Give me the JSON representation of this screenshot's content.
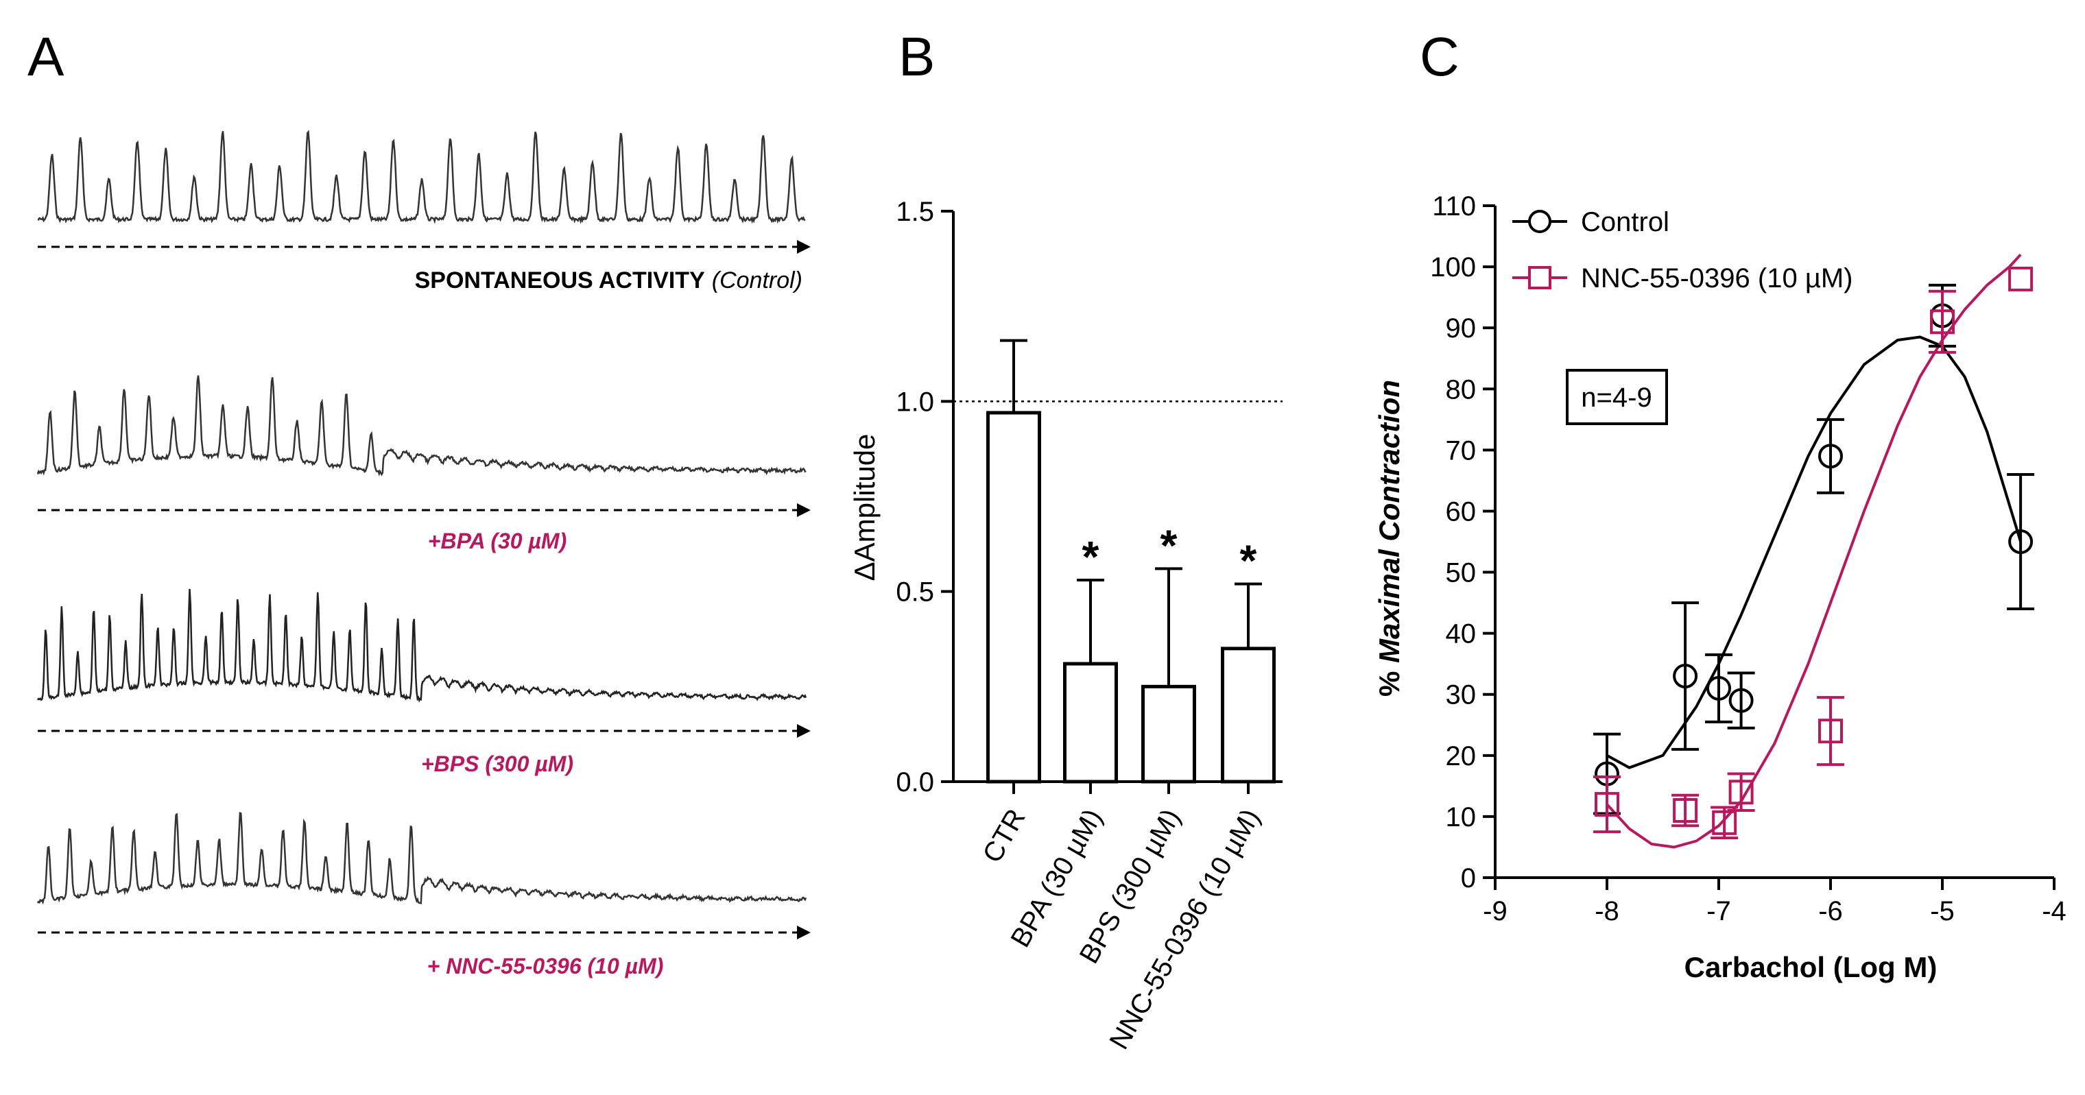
{
  "panels": {
    "a": "A",
    "b": "B",
    "c": "C"
  },
  "colors": {
    "control": "#000000",
    "treatment": "#b8195e",
    "trace": "#333333"
  },
  "panel_a": {
    "traces": [
      {
        "label_bold": "SPONTANEOUS ACTIVITY",
        "label_italic": "(Control)",
        "label": "",
        "spikes": 27,
        "drop_at": 1.0,
        "style": "control"
      },
      {
        "label_bold": "",
        "label_italic": "",
        "label": "+BPA (30 µM)",
        "spikes": 14,
        "drop_at": 0.45,
        "style": "treated"
      },
      {
        "label_bold": "",
        "label_italic": "",
        "label": "+BPS (300 µM)",
        "spikes": 24,
        "drop_at": 0.5,
        "style": "treated"
      },
      {
        "label_bold": "",
        "label_italic": "",
        "label": "+ NNC-55-0396 (10 µM)",
        "spikes": 18,
        "drop_at": 0.5,
        "style": "treated"
      }
    ]
  },
  "chart_data": [
    {
      "type": "bar",
      "panel": "B",
      "categories": [
        "CTR",
        "BPA (30 µM)",
        "BPS (300 µM)",
        "NNC-55-0396 (10 µM)"
      ],
      "values": [
        0.97,
        0.31,
        0.25,
        0.35
      ],
      "errors": [
        0.19,
        0.22,
        0.31,
        0.17
      ],
      "significance": [
        "",
        "*",
        "*",
        "*"
      ],
      "ylabel": "ΔAmplitude",
      "xlabel": "",
      "ylim": [
        0,
        1.5
      ],
      "yticks": [
        0,
        0.5,
        1.0,
        1.5
      ],
      "ytick_labels": [
        "0.0",
        "0.5",
        "1.0",
        "1.5"
      ],
      "reference_line": 1.0
    },
    {
      "type": "scatter",
      "panel": "C",
      "xlabel": "Carbachol (Log M)",
      "ylabel_prefix": "% ",
      "ylabel_main": "Maximal Contraction",
      "xlim": [
        -9,
        -4
      ],
      "ylim": [
        0,
        110
      ],
      "xticks": [
        -9,
        -8,
        -7,
        -6,
        -5,
        -4
      ],
      "yticks": [
        0,
        10,
        20,
        30,
        40,
        50,
        60,
        70,
        80,
        90,
        100,
        110
      ],
      "annotation": "n=4-9",
      "legend_position": "top-left",
      "series": [
        {
          "name": "Control",
          "marker": "circle",
          "x": [
            -8.0,
            -7.3,
            -7.0,
            -6.8,
            -6.0,
            -5.0,
            -4.3
          ],
          "y": [
            17,
            33,
            31,
            29,
            69,
            92,
            55
          ],
          "err": [
            6.5,
            12,
            5.5,
            4.5,
            6,
            5,
            11
          ],
          "curve_x": [
            -8.0,
            -7.8,
            -7.5,
            -7.2,
            -7.0,
            -6.8,
            -6.5,
            -6.2,
            -6.0,
            -5.7,
            -5.4,
            -5.2,
            -5.0,
            -4.8,
            -4.6,
            -4.45,
            -4.3
          ],
          "curve_y": [
            20,
            18,
            20,
            28,
            35,
            43,
            56,
            69,
            76,
            84,
            88,
            88.5,
            87,
            82,
            73,
            64,
            55
          ]
        },
        {
          "name": "NNC-55-0396 (10 µM)",
          "marker": "square",
          "x": [
            -8.0,
            -7.3,
            -6.95,
            -6.8,
            -6.0,
            -5.0,
            -4.3
          ],
          "y": [
            12,
            11,
            9,
            14,
            24,
            91,
            98
          ],
          "err": [
            4.5,
            2.5,
            2.5,
            3,
            5.5,
            5,
            0
          ],
          "curve_x": [
            -8.0,
            -7.8,
            -7.6,
            -7.4,
            -7.2,
            -7.0,
            -6.8,
            -6.5,
            -6.2,
            -6.0,
            -5.7,
            -5.4,
            -5.2,
            -5.0,
            -4.8,
            -4.6,
            -4.4,
            -4.3
          ],
          "curve_y": [
            12,
            8,
            5.5,
            5,
            6,
            8.5,
            12.5,
            22,
            35,
            45,
            60,
            74,
            82,
            88,
            93,
            97,
            100,
            102
          ]
        }
      ]
    }
  ]
}
